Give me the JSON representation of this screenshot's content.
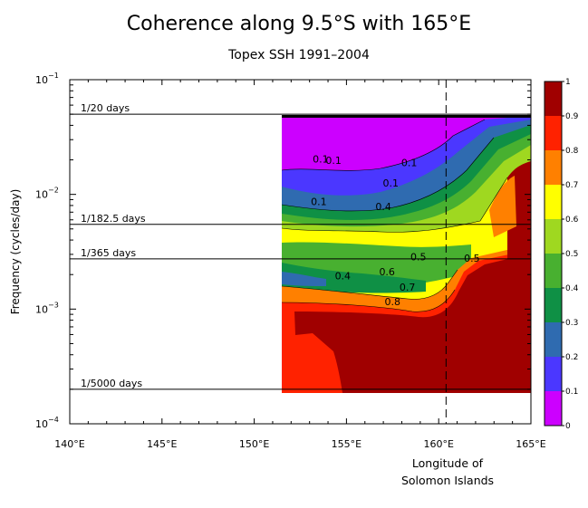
{
  "chart_data": {
    "type": "heatmap",
    "title": "Coherence along 9.5°S with 165°E",
    "subtitle": "Topex SSH 1991–2004",
    "ylabel": "Frequency (cycles/day)",
    "xlabel_lines": [
      "Longitude of",
      "Solomon Islands"
    ],
    "x_ticks": [
      "140°E",
      "145°E",
      "150°E",
      "155°E",
      "160°E",
      "165°E"
    ],
    "x_tick_values": [
      140,
      145,
      150,
      155,
      160,
      165
    ],
    "xlim": [
      140,
      165
    ],
    "y_scale": "log",
    "ylim": [
      0.0001,
      0.1
    ],
    "y_tick_exponents": [
      "-1",
      "-2",
      "-3",
      "-4"
    ],
    "reference_lines": [
      {
        "label": "1/20 days",
        "freq": 0.05
      },
      {
        "label": "1/182.5 days",
        "freq": 0.00548
      },
      {
        "label": "1/365 days",
        "freq": 0.00274
      },
      {
        "label": "1/5000 days",
        "freq": 0.0002
      }
    ],
    "solomon_islands_lon": 160.4,
    "data_lon_range": [
      151.5,
      165
    ],
    "contour_labels": [
      {
        "text": "0.1",
        "lon": 153.6,
        "freq": 0.019
      },
      {
        "text": "0.1",
        "lon": 154.3,
        "freq": 0.0185
      },
      {
        "text": "0.1",
        "lon": 158.4,
        "freq": 0.0176
      },
      {
        "text": "0.1",
        "lon": 157.4,
        "freq": 0.0117
      },
      {
        "text": "0.1",
        "lon": 153.5,
        "freq": 0.0081
      },
      {
        "text": "0.4",
        "lon": 157.0,
        "freq": 0.0073
      },
      {
        "text": "0.5",
        "lon": 158.9,
        "freq": 0.00265
      },
      {
        "text": "0.5",
        "lon": 161.8,
        "freq": 0.0026
      },
      {
        "text": "0.4",
        "lon": 154.8,
        "freq": 0.00182
      },
      {
        "text": "0.6",
        "lon": 157.2,
        "freq": 0.00198
      },
      {
        "text": "0.7",
        "lon": 158.3,
        "freq": 0.00145
      },
      {
        "text": "0.8",
        "lon": 157.5,
        "freq": 0.00108
      }
    ],
    "colorbar": {
      "ticks": [
        "0",
        "0.1",
        "0.2",
        "0.3",
        "0.4",
        "0.5",
        "0.6",
        "0.7",
        "0.8",
        "0.9",
        "1"
      ],
      "colors": [
        "#cc00ff",
        "#4b37ff",
        "#2f6bb0",
        "#0f9045",
        "#48b030",
        "#9fd820",
        "#ffff00",
        "#ff8000",
        "#ff2200",
        "#a00000"
      ],
      "range": [
        0,
        1
      ]
    }
  }
}
